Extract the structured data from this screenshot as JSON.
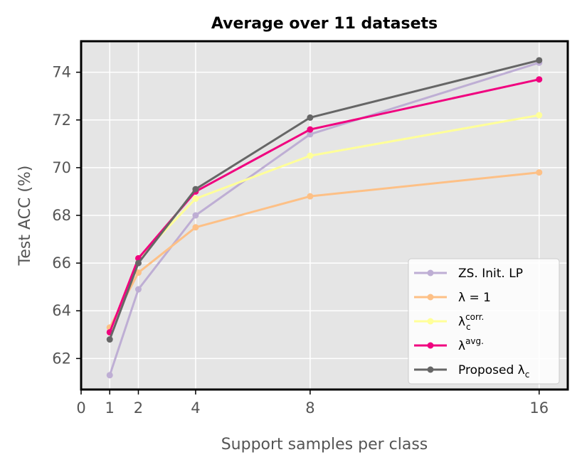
{
  "chart_data": {
    "type": "line",
    "title": "Average over 11 datasets",
    "xlabel": "Support samples per class",
    "ylabel": "Test ACC (%)",
    "xlim": [
      0,
      17
    ],
    "ylim": [
      60.7,
      75.3
    ],
    "xticks": [
      0,
      1,
      2,
      4,
      8,
      16
    ],
    "yticks": [
      62,
      64,
      66,
      68,
      70,
      72,
      74
    ],
    "grid": true,
    "legend_position": "lower-right",
    "x": [
      1,
      2,
      4,
      8,
      16
    ],
    "series": [
      {
        "name": "ZS. Init. LP",
        "legend_base": "ZS. Init. LP",
        "legend_sup": "",
        "legend_sub": "",
        "legend_suffix": "",
        "color": "#BEAED4",
        "values": [
          61.3,
          64.9,
          68.0,
          71.4,
          74.4
        ]
      },
      {
        "name": "λ = 1",
        "legend_base": "λ = 1",
        "legend_sup": "",
        "legend_sub": "",
        "legend_suffix": "",
        "color": "#FDC086",
        "values": [
          63.3,
          65.6,
          67.5,
          68.8,
          69.8
        ]
      },
      {
        "name": "λ_c^corr.",
        "legend_base": "λ",
        "legend_sup": "corr.",
        "legend_sub": "c",
        "legend_suffix": "",
        "color": "#FFFF99",
        "values": [
          63.1,
          66.2,
          68.7,
          70.5,
          72.2
        ]
      },
      {
        "name": "λ^avg.",
        "legend_base": "λ",
        "legend_sup": "avg.",
        "legend_sub": "",
        "legend_suffix": "",
        "color": "#F0027F",
        "values": [
          63.1,
          66.2,
          69.0,
          71.6,
          73.7
        ]
      },
      {
        "name": "Proposed λ_c",
        "legend_base": "Proposed λ",
        "legend_sup": "",
        "legend_sub": "c",
        "legend_suffix": "",
        "color": "#666666",
        "values": [
          62.8,
          66.0,
          69.1,
          72.1,
          74.5
        ]
      }
    ]
  }
}
